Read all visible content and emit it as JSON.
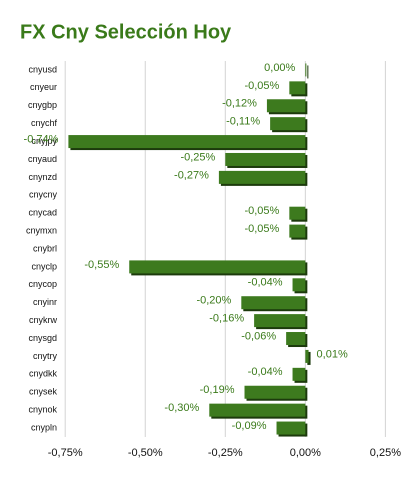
{
  "chart_data": {
    "type": "bar",
    "orientation": "horizontal",
    "title": "FX Cny Selección Hoy",
    "categories": [
      "cnyusd",
      "cnyeur",
      "cnygbp",
      "cnychf",
      "cnyjpy",
      "cnyaud",
      "cnynzd",
      "cnycny",
      "cnycad",
      "cnymxn",
      "cnybrl",
      "cnyclp",
      "cnycop",
      "cnyinr",
      "cnykrw",
      "cnysgd",
      "cnytry",
      "cnydkk",
      "cnysek",
      "cnynok",
      "cnypln"
    ],
    "values": [
      0.0,
      -0.05,
      -0.12,
      -0.11,
      -0.74,
      -0.25,
      -0.27,
      null,
      -0.05,
      -0.05,
      null,
      -0.55,
      -0.04,
      -0.2,
      -0.16,
      -0.06,
      0.01,
      -0.04,
      -0.19,
      -0.3,
      -0.09
    ],
    "value_labels": [
      "0,00%",
      "-0,05%",
      "-0,12%",
      "-0,11%",
      "-0,74%",
      "-0,25%",
      "-0,27%",
      null,
      "-0,05%",
      "-0,05%",
      null,
      "-0,55%",
      "-0,04%",
      "-0,20%",
      "-0,16%",
      "-0,06%",
      "0,01%",
      "-0,04%",
      "-0,19%",
      "-0,30%",
      "-0,09%"
    ],
    "color": "#3d7a1e",
    "xlim": [
      -0.76,
      0.28
    ],
    "xticks": [
      {
        "value": -0.75,
        "label": "-0,75%"
      },
      {
        "value": -0.5,
        "label": "-0,50%"
      },
      {
        "value": -0.25,
        "label": "-0,25%"
      },
      {
        "value": 0,
        "label": "0,00%"
      },
      {
        "value": 0.25,
        "label": "0,25%"
      }
    ],
    "grid": true
  }
}
